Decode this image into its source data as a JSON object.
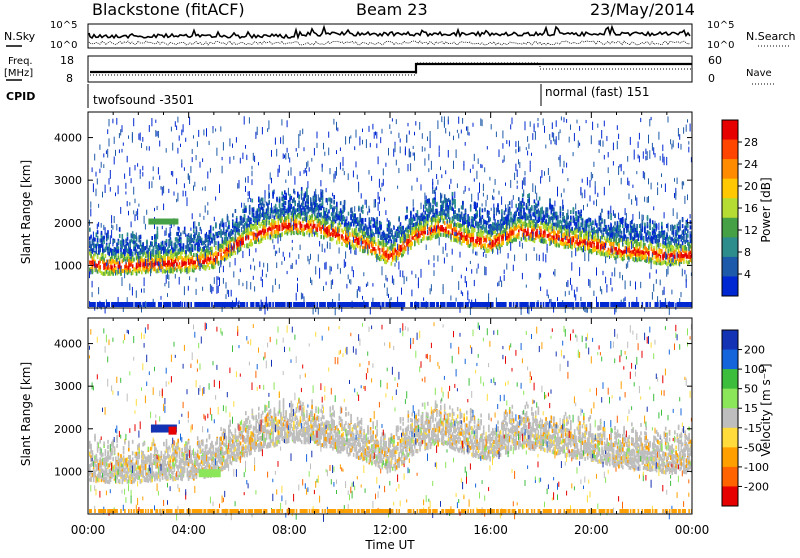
{
  "header": {
    "station": "Blackstone (fitACF)",
    "beam": "Beam 23",
    "date": "23/May/2014"
  },
  "side_labels": {
    "nsky": "N.Sky",
    "nsearch": "N.Search",
    "freq_line1": "Freq.",
    "freq_line2": "[MHz]",
    "nave": "Nave",
    "cpid": "CPID"
  },
  "noise_panel": {
    "left_ticks": [
      "10^5",
      "10^0"
    ],
    "right_ticks": [
      "10^5",
      "10^0"
    ]
  },
  "freq_panel": {
    "left_ticks": [
      "18",
      "8"
    ],
    "right_ticks": [
      "60",
      "0"
    ]
  },
  "cpid_panel": {
    "modes": [
      {
        "label": "twofsound -3501",
        "start_hour": 0,
        "end_hour": 18.1
      },
      {
        "label": "normal (fast) 151",
        "start_hour": 18.1,
        "end_hour": 24
      }
    ]
  },
  "power_panel": {
    "ylabel": "Slant Range [km]",
    "cbar_label": "Power [dB]",
    "cbar_ticks": [
      "28",
      "24",
      "20",
      "16",
      "12",
      "8",
      "4"
    ],
    "cbar_colors": [
      "#e60000",
      "#ff4500",
      "#ff8c00",
      "#ffc800",
      "#b4dc32",
      "#46a046",
      "#2d8c8c",
      "#1e5aaa",
      "#0028d2"
    ]
  },
  "velocity_panel": {
    "ylabel": "Slant Range [km]",
    "cbar_label": "Velocity [m s⁻¹]",
    "cbar_ticks": [
      "200",
      "100",
      "50",
      "15",
      "-15",
      "-50",
      "-100",
      "-200"
    ],
    "cbar_colors": [
      "#1432b4",
      "#1464dc",
      "#3cbe3c",
      "#8ce65a",
      "#bebebe",
      "#ffdc3c",
      "#ffa000",
      "#ff6400",
      "#e60000"
    ]
  },
  "x_axis": {
    "label": "Time UT",
    "ticks": [
      "00:00",
      "04:00",
      "08:00",
      "12:00",
      "16:00",
      "20:00",
      "00:00"
    ]
  },
  "chart_data": [
    {
      "type": "heatmap",
      "title": "Power",
      "ylabel": "Slant Range [km]",
      "xlabel": "Time UT",
      "ylim": [
        0,
        4600
      ],
      "yticks": [
        1000,
        2000,
        3000,
        4000
      ],
      "xlim_hours": [
        0,
        24
      ],
      "colorbar": {
        "label": "Power [dB]",
        "ticks": [
          4,
          8,
          12,
          16,
          20,
          24,
          28
        ],
        "range": [
          0,
          30
        ]
      },
      "bands": [
        {
          "hours": [
            0,
            0.5,
            1,
            2,
            3,
            4,
            5,
            6,
            7,
            8,
            9,
            10,
            11,
            12,
            13,
            14,
            15,
            16,
            17,
            18,
            19,
            20,
            21,
            22,
            23,
            24
          ],
          "range_km": [
            1050,
            1000,
            980,
            1000,
            1050,
            1050,
            1150,
            1550,
            1800,
            1950,
            1900,
            1700,
            1500,
            1200,
            1700,
            1900,
            1650,
            1500,
            1800,
            1750,
            1600,
            1500,
            1350,
            1300,
            1200,
            1250
          ],
          "peak_power_db": 28
        }
      ]
    },
    {
      "type": "heatmap",
      "title": "Velocity",
      "ylabel": "Slant Range [km]",
      "xlabel": "Time UT",
      "ylim": [
        0,
        4600
      ],
      "yticks": [
        1000,
        2000,
        3000,
        4000
      ],
      "xlim_hours": [
        0,
        24
      ],
      "colorbar": {
        "label": "Velocity [m s⁻¹]",
        "ticks": [
          200,
          100,
          50,
          15,
          -15,
          -50,
          -100,
          -200
        ]
      },
      "dominant_velocity_ms": 0
    }
  ]
}
